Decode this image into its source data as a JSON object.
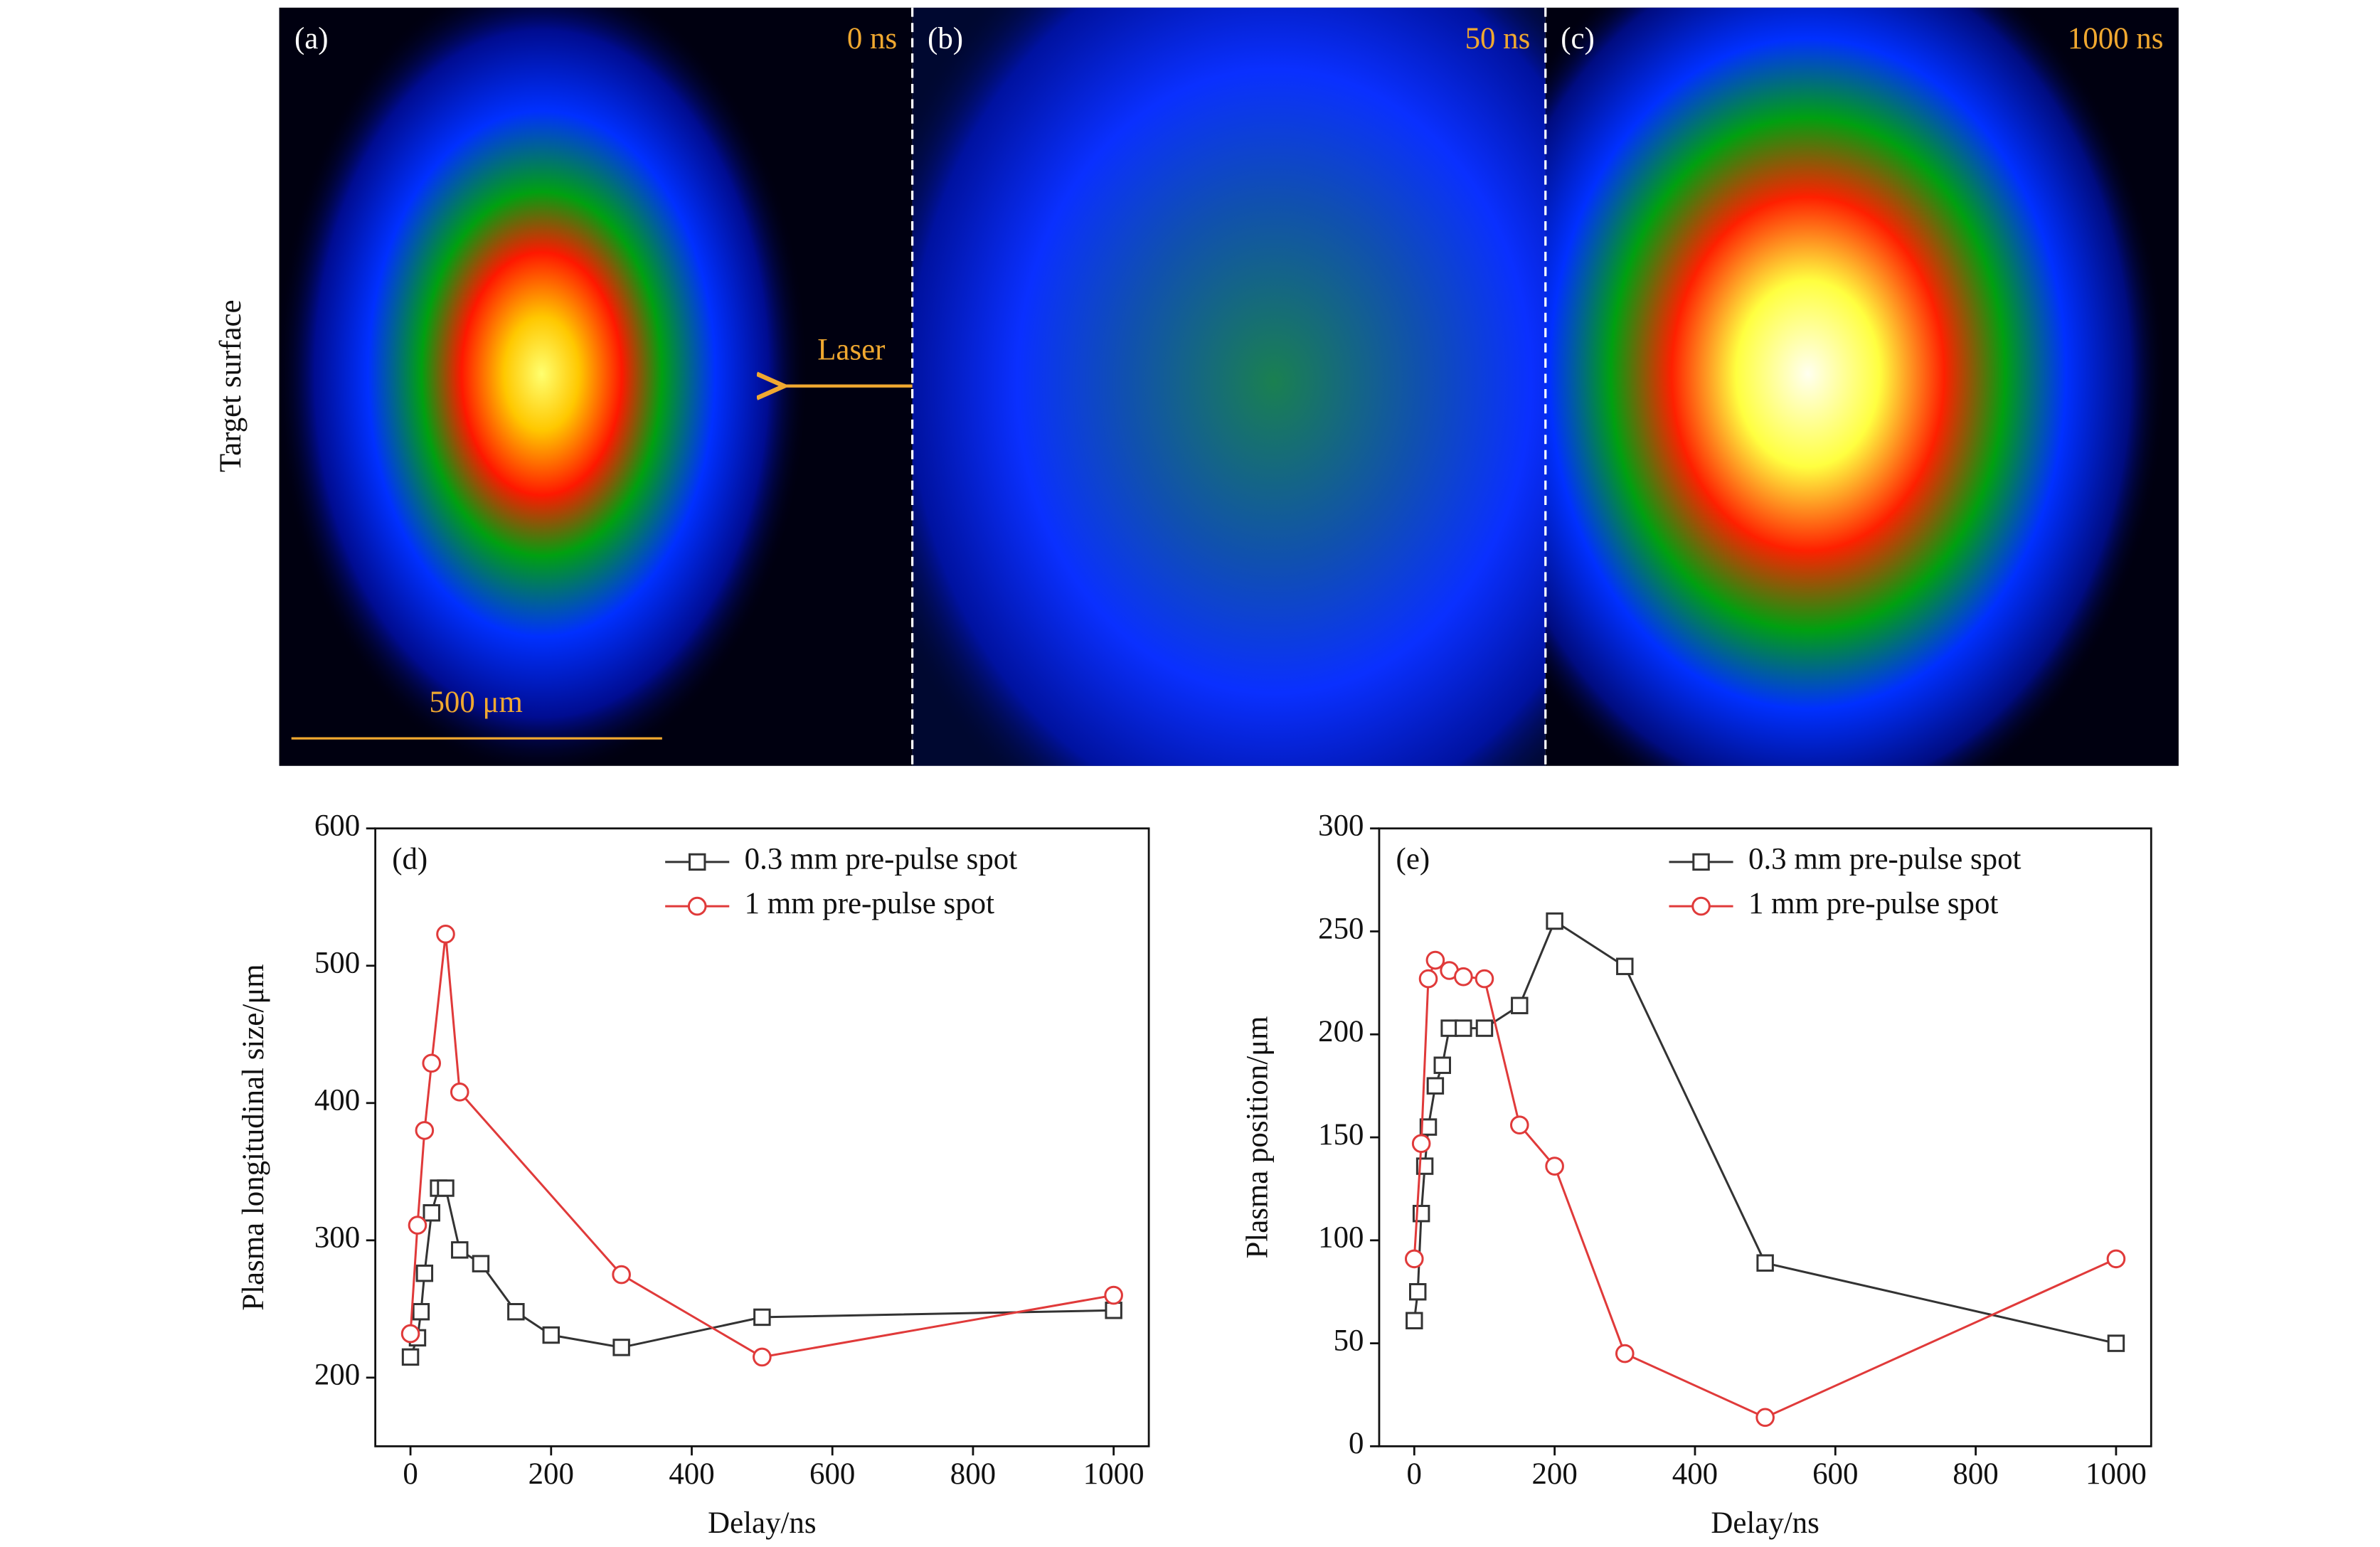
{
  "images": {
    "panels": [
      {
        "label": "(a)",
        "time": "0 ns"
      },
      {
        "label": "(b)",
        "time": "50 ns"
      },
      {
        "label": "(c)",
        "time": "1000 ns"
      }
    ],
    "side_label": "Target surface",
    "arrow_label": "Laser",
    "scale_bar": "500 μm"
  },
  "chart_data": [
    {
      "type": "line",
      "panel_label": "(d)",
      "xlabel": "Delay/ns",
      "ylabel": "Plasma longitudinal size/μm",
      "xlim": [
        -50,
        1050
      ],
      "ylim": [
        150,
        600
      ],
      "xticks": [
        0,
        200,
        400,
        600,
        800,
        1000
      ],
      "yticks": [
        200,
        300,
        400,
        500,
        600
      ],
      "legend": "upper right",
      "series": [
        {
          "name": "0.3 mm pre-pulse spot",
          "color": "#333333",
          "marker": "square",
          "x": [
            0,
            10,
            15,
            20,
            30,
            40,
            50,
            70,
            100,
            150,
            200,
            300,
            500,
            1000
          ],
          "values": [
            215,
            229,
            248,
            276,
            320,
            338,
            338,
            293,
            283,
            248,
            231,
            222,
            244,
            249
          ]
        },
        {
          "name": "1 mm pre-pulse spot",
          "color": "#e03a3a",
          "marker": "circle",
          "x": [
            0,
            10,
            20,
            30,
            50,
            70,
            300,
            500,
            1000
          ],
          "values": [
            232,
            311,
            380,
            429,
            523,
            408,
            275,
            215,
            260
          ]
        }
      ]
    },
    {
      "type": "line",
      "panel_label": "(e)",
      "xlabel": "Delay/ns",
      "ylabel": "Plasma position/μm",
      "xlim": [
        -50,
        1050
      ],
      "ylim": [
        0,
        300
      ],
      "xticks": [
        0,
        200,
        400,
        600,
        800,
        1000
      ],
      "yticks": [
        0,
        50,
        100,
        150,
        200,
        250,
        300
      ],
      "legend": "upper right",
      "series": [
        {
          "name": "0.3 mm pre-pulse spot",
          "color": "#333333",
          "marker": "square",
          "x": [
            0,
            5,
            10,
            15,
            20,
            30,
            40,
            50,
            70,
            100,
            150,
            200,
            300,
            500,
            1000
          ],
          "values": [
            61,
            75,
            113,
            136,
            155,
            175,
            185,
            203,
            203,
            203,
            214,
            255,
            233,
            89,
            50
          ]
        },
        {
          "name": "1 mm pre-pulse spot",
          "color": "#e03a3a",
          "marker": "circle",
          "x": [
            0,
            10,
            20,
            30,
            50,
            70,
            100,
            150,
            200,
            300,
            500,
            1000
          ],
          "values": [
            91,
            147,
            227,
            236,
            231,
            228,
            227,
            156,
            136,
            45,
            14,
            91
          ]
        }
      ]
    }
  ]
}
